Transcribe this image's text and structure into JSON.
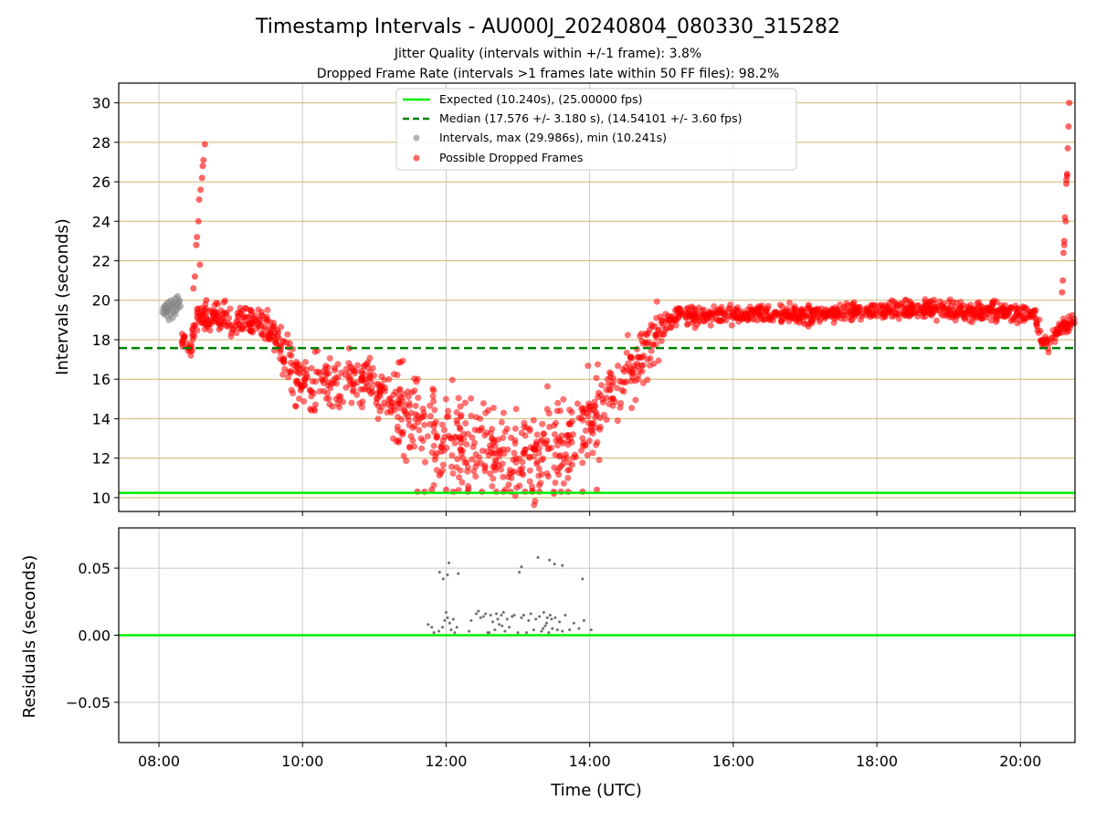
{
  "title": "Timestamp Intervals - AU000J_20240804_080330_315282",
  "subtitle_lines": [
    "Jitter Quality (intervals within +/-1 frame): 3.8%",
    "Dropped Frame Rate (intervals >1 frames late within 50 FF files): 98.2%"
  ],
  "colors": {
    "expected": "#00ee00",
    "median": "#008000",
    "intervals": "#808080",
    "dropped": "#ff0000",
    "hgrid": "#d2b46e",
    "vgrid": "#c8c8c8",
    "residuals": "#6e6e6e"
  },
  "chart_data": [
    {
      "type": "scatter",
      "ylabel": "Intervals (seconds)",
      "xlim_hours": [
        7.44,
        20.76
      ],
      "ylim": [
        9.3,
        31.0
      ],
      "yticks": [
        10,
        12,
        14,
        16,
        18,
        20,
        22,
        24,
        26,
        28,
        30
      ],
      "ytick_labels": [
        "10",
        "12",
        "14",
        "16",
        "18",
        "20",
        "22",
        "24",
        "26",
        "28",
        "30"
      ],
      "grid": true,
      "legend_position": "top-center",
      "reference_lines": [
        {
          "name": "Expected (10.240s), (25.00000 fps)",
          "y": 10.24,
          "style": "solid"
        },
        {
          "name": "Median (17.576 +/- 3.180 s), (14.54101 +/- 3.60 fps)",
          "y": 17.576,
          "style": "dashed"
        }
      ],
      "series": [
        {
          "name": "Intervals, max (29.986s), min (10.241s)",
          "points_hours_seconds": [
            [
              8.05,
              19.4
            ],
            [
              8.06,
              19.6
            ],
            [
              8.07,
              19.3
            ],
            [
              8.08,
              19.7
            ],
            [
              8.09,
              19.5
            ],
            [
              8.1,
              19.8
            ],
            [
              8.11,
              19.4
            ],
            [
              8.12,
              19.6
            ],
            [
              8.13,
              19.9
            ],
            [
              8.14,
              19.5
            ],
            [
              8.15,
              19.7
            ],
            [
              8.16,
              19.3
            ],
            [
              8.17,
              20.0
            ],
            [
              8.18,
              19.6
            ],
            [
              8.19,
              19.8
            ],
            [
              8.2,
              19.4
            ],
            [
              8.21,
              19.9
            ],
            [
              8.22,
              19.7
            ],
            [
              8.23,
              20.1
            ],
            [
              8.24,
              19.5
            ],
            [
              8.25,
              19.8
            ],
            [
              8.26,
              20.2
            ],
            [
              8.27,
              19.6
            ],
            [
              8.28,
              19.9
            ],
            [
              8.29,
              20.0
            ],
            [
              8.3,
              19.7
            ],
            [
              8.11,
              19.2
            ],
            [
              8.14,
              19.0
            ],
            [
              8.19,
              19.1
            ],
            [
              8.23,
              19.3
            ]
          ]
        },
        {
          "name": "Possible Dropped Frames",
          "trend_hours_seconds": [
            [
              8.32,
              18.0
            ],
            [
              8.45,
              17.5
            ],
            [
              8.5,
              19.0
            ],
            [
              8.6,
              19.3
            ],
            [
              9.0,
              19.0
            ],
            [
              9.3,
              18.9
            ],
            [
              9.6,
              18.5
            ],
            [
              9.75,
              17.0
            ],
            [
              9.85,
              16.2
            ],
            [
              10.1,
              15.9
            ],
            [
              10.6,
              16.1
            ],
            [
              11.0,
              15.8
            ],
            [
              11.2,
              14.6
            ],
            [
              11.45,
              14.2
            ],
            [
              11.7,
              13.5
            ],
            [
              12.0,
              12.8
            ],
            [
              12.5,
              12.4
            ],
            [
              13.0,
              12.4
            ],
            [
              13.5,
              12.6
            ],
            [
              13.9,
              13.5
            ],
            [
              14.2,
              15.2
            ],
            [
              14.55,
              16.3
            ],
            [
              14.8,
              17.4
            ],
            [
              15.0,
              18.6
            ],
            [
              15.2,
              19.2
            ],
            [
              16.0,
              19.3
            ],
            [
              17.0,
              19.3
            ],
            [
              18.0,
              19.5
            ],
            [
              19.0,
              19.5
            ],
            [
              19.5,
              19.4
            ],
            [
              20.2,
              19.3
            ],
            [
              20.3,
              18.0
            ],
            [
              20.4,
              17.7
            ],
            [
              20.55,
              18.6
            ],
            [
              20.76,
              19.0
            ]
          ],
          "band_point_count": 1800,
          "extra_points_hours_seconds": [
            [
              8.48,
              20.6
            ],
            [
              8.5,
              21.2
            ],
            [
              8.52,
              22.8
            ],
            [
              8.53,
              23.2
            ],
            [
              8.55,
              24.0
            ],
            [
              8.56,
              25.1
            ],
            [
              8.58,
              25.6
            ],
            [
              8.6,
              26.2
            ],
            [
              8.61,
              26.8
            ],
            [
              8.62,
              27.1
            ],
            [
              8.64,
              27.9
            ],
            [
              8.57,
              21.8
            ],
            [
              8.65,
              19.6
            ],
            [
              8.66,
              20.0
            ],
            [
              20.58,
              20.4
            ],
            [
              20.59,
              21.0
            ],
            [
              20.6,
              22.4
            ],
            [
              20.61,
              23.0
            ],
            [
              20.62,
              24.2
            ],
            [
              20.63,
              24.0
            ],
            [
              20.64,
              25.9
            ],
            [
              20.65,
              26.3
            ],
            [
              20.66,
              27.7
            ],
            [
              20.67,
              28.8
            ],
            [
              20.68,
              30.0
            ],
            [
              20.64,
              26.1
            ],
            [
              20.61,
              22.8
            ],
            [
              20.65,
              26.4
            ],
            [
              11.6,
              10.3
            ],
            [
              11.7,
              10.3
            ],
            [
              11.8,
              10.4
            ],
            [
              12.0,
              10.4
            ],
            [
              12.1,
              10.3
            ],
            [
              12.3,
              10.3
            ],
            [
              12.5,
              10.3
            ],
            [
              12.7,
              10.3
            ],
            [
              12.9,
              10.3
            ],
            [
              13.1,
              10.3
            ],
            [
              13.3,
              10.3
            ],
            [
              13.5,
              10.3
            ],
            [
              13.7,
              10.3
            ],
            [
              13.9,
              10.3
            ],
            [
              14.1,
              10.4
            ],
            [
              12.8,
              10.3
            ],
            [
              13.2,
              10.3
            ],
            [
              13.6,
              10.3
            ]
          ]
        }
      ]
    },
    {
      "type": "scatter",
      "xlabel": "Time (UTC)",
      "ylabel": "Residuals (seconds)",
      "xlim_hours": [
        7.44,
        20.76
      ],
      "ylim": [
        -0.08,
        0.08
      ],
      "yticks": [
        -0.05,
        0.0,
        0.05
      ],
      "ytick_labels": [
        "−0.05",
        "0.00",
        "0.05"
      ],
      "xticks_hours": [
        8,
        10,
        12,
        14,
        16,
        18,
        20
      ],
      "xtick_labels": [
        "08:00",
        "10:00",
        "12:00",
        "14:00",
        "16:00",
        "18:00",
        "20:00"
      ],
      "grid": true,
      "reference_lines": [
        {
          "y": 0.0,
          "style": "solid"
        }
      ],
      "series": [
        {
          "name": "",
          "points_hours_seconds": [
            [
              11.91,
              0.047
            ],
            [
              11.96,
              0.042
            ],
            [
              12.04,
              0.054
            ],
            [
              12.02,
              0.045
            ],
            [
              12.17,
              0.046
            ],
            [
              13.02,
              0.047
            ],
            [
              13.05,
              0.051
            ],
            [
              13.28,
              0.058
            ],
            [
              13.44,
              0.056
            ],
            [
              13.51,
              0.053
            ],
            [
              13.62,
              0.052
            ],
            [
              13.9,
              0.042
            ],
            [
              11.75,
              0.008
            ],
            [
              11.8,
              0.006
            ],
            [
              11.83,
              0.002
            ],
            [
              11.9,
              0.003
            ],
            [
              11.95,
              0.006
            ],
            [
              11.98,
              0.011
            ],
            [
              12.0,
              0.017
            ],
            [
              12.02,
              0.013
            ],
            [
              12.05,
              0.009
            ],
            [
              12.07,
              0.004
            ],
            [
              12.1,
              0.012
            ],
            [
              12.12,
              0.002
            ],
            [
              12.15,
              0.006
            ],
            [
              12.32,
              0.003
            ],
            [
              12.35,
              0.011
            ],
            [
              12.42,
              0.016
            ],
            [
              12.45,
              0.018
            ],
            [
              12.48,
              0.013
            ],
            [
              12.52,
              0.014
            ],
            [
              12.55,
              0.016
            ],
            [
              12.6,
              0.002
            ],
            [
              12.62,
              0.015
            ],
            [
              12.65,
              0.01
            ],
            [
              12.68,
              0.004
            ],
            [
              12.7,
              0.016
            ],
            [
              12.72,
              0.012
            ],
            [
              12.74,
              0.008
            ],
            [
              12.77,
              0.015
            ],
            [
              12.8,
              0.017
            ],
            [
              12.82,
              0.003
            ],
            [
              12.85,
              0.012
            ],
            [
              12.88,
              0.006
            ],
            [
              12.92,
              0.014
            ],
            [
              12.95,
              0.015
            ],
            [
              13.0,
              0.002
            ],
            [
              13.05,
              0.013
            ],
            [
              13.08,
              0.015
            ],
            [
              13.12,
              0.002
            ],
            [
              13.15,
              0.011
            ],
            [
              13.18,
              0.016
            ],
            [
              13.22,
              0.004
            ],
            [
              13.25,
              0.012
            ],
            [
              13.3,
              0.014
            ],
            [
              13.33,
              0.003
            ],
            [
              13.36,
              0.017
            ],
            [
              13.4,
              0.009
            ],
            [
              13.43,
              0.002
            ],
            [
              13.45,
              0.015
            ],
            [
              13.48,
              0.005
            ],
            [
              13.52,
              0.013
            ],
            [
              13.55,
              0.004
            ],
            [
              13.58,
              0.01
            ],
            [
              13.62,
              0.003
            ],
            [
              13.66,
              0.015
            ],
            [
              13.72,
              0.004
            ],
            [
              13.78,
              0.009
            ],
            [
              13.85,
              0.005
            ],
            [
              13.92,
              0.011
            ],
            [
              14.02,
              0.004
            ],
            [
              13.35,
              0.005
            ],
            [
              13.47,
              0.012
            ],
            [
              12.58,
              0.002
            ],
            [
              12.78,
              0.007
            ],
            [
              13.38,
              0.007
            ],
            [
              13.41,
              0.013
            ]
          ]
        }
      ]
    }
  ]
}
